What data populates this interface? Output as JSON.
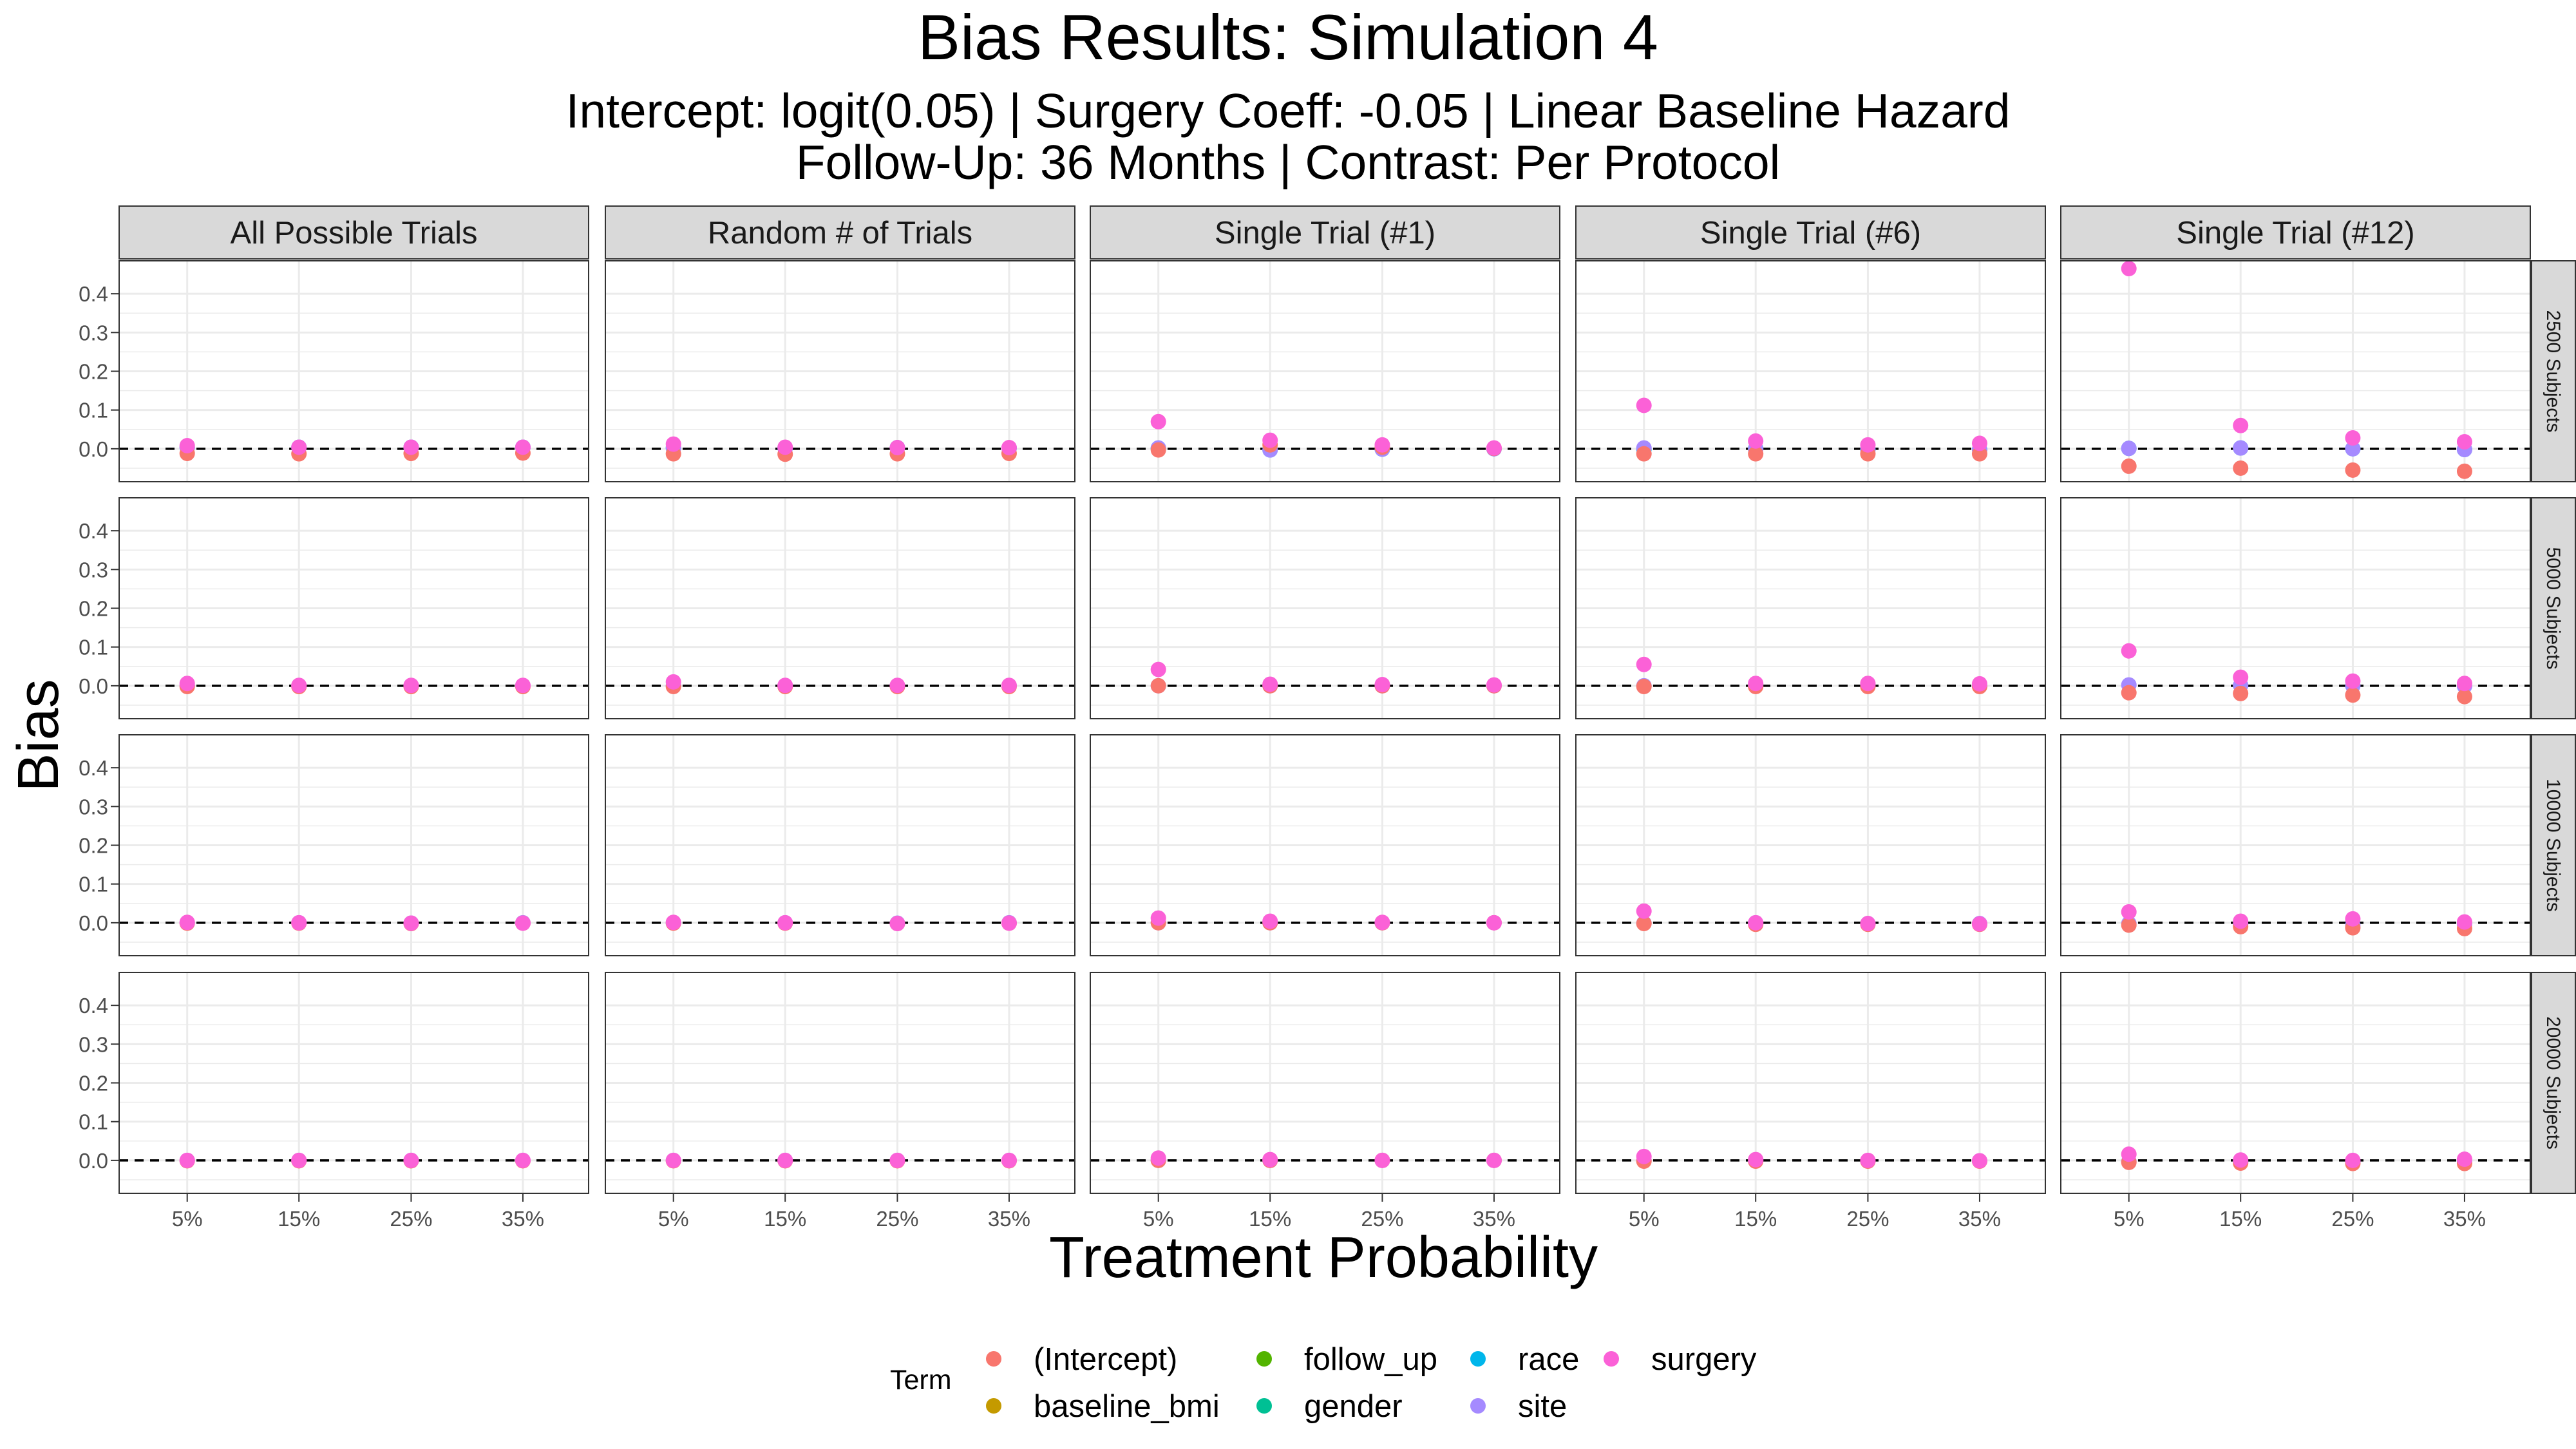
{
  "title": "Bias Results: Simulation 4",
  "subtitle_line1": "Intercept: logit(0.05) | Surgery Coeff: -0.05 | Linear Baseline Hazard",
  "subtitle_line2": "Follow-Up: 36 Months | Contrast: Per Protocol",
  "colors": {
    "(Intercept)": "#F8766D",
    "baseline_bmi": "#C49A00",
    "follow_up": "#53B400",
    "gender": "#00C094",
    "race": "#00B6EB",
    "site": "#A58AFF",
    "surgery": "#FB61D7",
    "zero_line": "#000000",
    "strip_fill": "#d9d9d9",
    "grid": "#ebebeb"
  },
  "legend": {
    "title": "Term",
    "items": [
      "(Intercept)",
      "baseline_bmi",
      "follow_up",
      "gender",
      "race",
      "site",
      "surgery"
    ]
  },
  "chart_data": {
    "type": "scatter",
    "xlabel": "Treatment Probability",
    "ylabel": "Bias",
    "x_categories": [
      "5%",
      "15%",
      "25%",
      "35%"
    ],
    "y_ticks": [
      "0.0",
      "0.1",
      "0.2",
      "0.3",
      "0.4"
    ],
    "ylim": [
      -0.085,
      0.485
    ],
    "grid": true,
    "legend_position": "bottom",
    "zero_reference_line": 0.0,
    "facet_columns": [
      "All Possible Trials",
      "Random # of Trials",
      "Single Trial (#1)",
      "Single Trial (#6)",
      "Single Trial (#12)"
    ],
    "facet_rows": [
      "2500 Subjects",
      "5000 Subjects",
      "10000 Subjects",
      "20000 Subjects"
    ],
    "panels": [
      [
        {
          "(Intercept)": [
            -0.012,
            -0.013,
            -0.012,
            -0.011
          ],
          "race": [
            0.004,
            0.004,
            0.004,
            0.004
          ],
          "site": [
            0.004,
            0.004,
            0.004,
            0.004
          ],
          "surgery": [
            0.008,
            0.004,
            0.004,
            0.004
          ]
        },
        {
          "(Intercept)": [
            -0.013,
            -0.014,
            -0.013,
            -0.012
          ],
          "race": [
            0.002,
            0.002,
            0.003,
            0.002
          ],
          "site": [
            0.002,
            0.002,
            0.003,
            0.002
          ],
          "surgery": [
            0.012,
            0.004,
            0.003,
            0.003
          ]
        },
        {
          "(Intercept)": [
            -0.003,
            0.01,
            0.004,
            0.001
          ],
          "race": [
            0.001,
            -0.003,
            -0.001,
            0.0
          ],
          "site": [
            0.002,
            -0.003,
            -0.001,
            0.0
          ],
          "surgery": [
            0.07,
            0.022,
            0.01,
            0.002
          ]
        },
        {
          "(Intercept)": [
            -0.013,
            -0.013,
            -0.013,
            -0.013
          ],
          "race": [
            -0.001,
            0.0,
            -0.002,
            -0.002
          ],
          "site": [
            0.002,
            -0.001,
            -0.002,
            -0.002
          ],
          "surgery": [
            0.112,
            0.02,
            0.01,
            0.014
          ]
        },
        {
          "(Intercept)": [
            -0.045,
            -0.05,
            -0.055,
            -0.058
          ],
          "race": [
            0.001,
            0.002,
            0.0,
            -0.002
          ],
          "site": [
            0.001,
            0.002,
            0.0,
            -0.002
          ],
          "surgery": [
            0.465,
            0.06,
            0.028,
            0.018
          ]
        }
      ],
      [
        {
          "(Intercept)": [
            -0.002,
            -0.002,
            -0.002,
            -0.002
          ],
          "site": [
            0.001,
            0.0,
            0.0,
            0.0
          ],
          "surgery": [
            0.006,
            0.001,
            0.001,
            0.001
          ]
        },
        {
          "(Intercept)": [
            -0.002,
            -0.002,
            -0.002,
            -0.002
          ],
          "site": [
            0.0,
            0.0,
            0.0,
            0.0
          ],
          "surgery": [
            0.01,
            0.001,
            0.001,
            0.001
          ]
        },
        {
          "(Intercept)": [
            0.0,
            0.0,
            0.0,
            0.0
          ],
          "site": [
            0.0,
            0.0,
            0.0,
            0.0
          ],
          "surgery": [
            0.042,
            0.004,
            0.003,
            0.002
          ]
        },
        {
          "(Intercept)": [
            -0.002,
            -0.002,
            -0.002,
            -0.002
          ],
          "site": [
            0.0,
            0.0,
            0.0,
            -0.001
          ],
          "surgery": [
            0.055,
            0.006,
            0.006,
            0.005
          ]
        },
        {
          "(Intercept)": [
            -0.018,
            -0.02,
            -0.024,
            -0.028
          ],
          "site": [
            0.002,
            0.001,
            0.0,
            -0.001
          ],
          "surgery": [
            0.09,
            0.022,
            0.012,
            0.006
          ]
        }
      ],
      [
        {
          "(Intercept)": [
            -0.001,
            -0.001,
            -0.002,
            -0.001
          ],
          "site": [
            0.0,
            0.0,
            -0.001,
            0.0
          ],
          "surgery": [
            0.001,
            0.0,
            -0.001,
            -0.001
          ]
        },
        {
          "(Intercept)": [
            -0.001,
            -0.001,
            -0.002,
            -0.001
          ],
          "site": [
            0.0,
            0.0,
            -0.001,
            0.0
          ],
          "surgery": [
            0.001,
            0.0,
            -0.002,
            -0.001
          ]
        },
        {
          "(Intercept)": [
            0.0,
            0.0,
            0.0,
            0.0
          ],
          "site": [
            0.0,
            0.0,
            0.0,
            0.0
          ],
          "surgery": [
            0.012,
            0.004,
            0.001,
            0.0
          ]
        },
        {
          "(Intercept)": [
            -0.002,
            -0.004,
            -0.004,
            -0.004
          ],
          "site": [
            -0.001,
            0.0,
            -0.002,
            -0.002
          ],
          "surgery": [
            0.03,
            0.0,
            -0.002,
            -0.003
          ]
        },
        {
          "(Intercept)": [
            -0.006,
            -0.01,
            -0.013,
            -0.015
          ],
          "site": [
            -0.002,
            -0.004,
            -0.006,
            -0.004
          ],
          "surgery": [
            0.028,
            0.004,
            0.01,
            0.002
          ]
        }
      ],
      [
        {
          "(Intercept)": [
            -0.001,
            -0.001,
            -0.001,
            -0.001
          ],
          "site": [
            0.0,
            0.0,
            0.0,
            0.0
          ],
          "surgery": [
            0.0,
            0.0,
            0.0,
            0.0
          ]
        },
        {
          "(Intercept)": [
            -0.001,
            -0.001,
            -0.001,
            -0.001
          ],
          "site": [
            0.0,
            0.0,
            0.0,
            0.0
          ],
          "surgery": [
            0.0,
            0.0,
            0.0,
            0.0
          ]
        },
        {
          "(Intercept)": [
            0.0,
            0.0,
            0.0,
            0.0
          ],
          "site": [
            0.0,
            0.0,
            0.0,
            0.0
          ],
          "surgery": [
            0.006,
            0.002,
            0.0,
            0.0
          ]
        },
        {
          "(Intercept)": [
            -0.002,
            -0.002,
            -0.002,
            -0.002
          ],
          "site": [
            -0.001,
            0.0,
            -0.001,
            -0.001
          ],
          "surgery": [
            0.01,
            0.002,
            0.0,
            -0.001
          ]
        },
        {
          "(Intercept)": [
            -0.005,
            -0.007,
            -0.008,
            -0.008
          ],
          "site": [
            -0.003,
            -0.004,
            -0.004,
            -0.003
          ],
          "surgery": [
            0.016,
            0.001,
            0.0,
            0.003
          ]
        }
      ]
    ]
  }
}
